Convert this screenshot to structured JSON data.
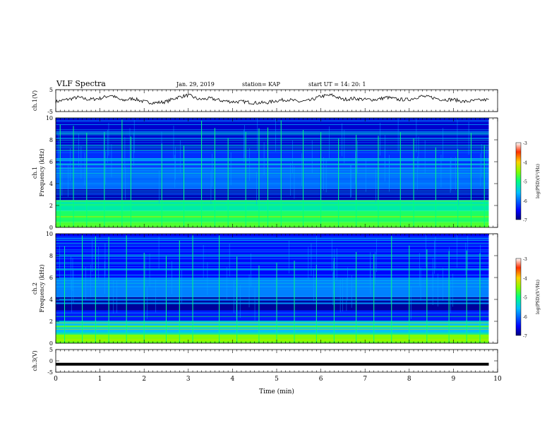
{
  "header": {
    "title": "VLF Spectra",
    "date": "Jan. 29, 2019",
    "station": "station= KAP",
    "start": "start  UT =   14: 20: 1"
  },
  "chart_data": [
    {
      "type": "line",
      "panel": "ch1-waveform",
      "ylabel": "ch.1(V)",
      "ylim": [
        -5,
        5
      ],
      "yticks": [
        "5",
        "-5"
      ],
      "xlim": [
        0,
        10
      ],
      "color": "#000000",
      "x": [
        0,
        0.25,
        0.5,
        0.75,
        1,
        1.25,
        1.5,
        1.75,
        2,
        2.25,
        2.5,
        2.75,
        3,
        3.25,
        3.5,
        3.75,
        4,
        4.25,
        4.5,
        4.75,
        5,
        5.25,
        5.5,
        5.75,
        6,
        6.25,
        6.5,
        6.75,
        7,
        7.25,
        7.5,
        7.75,
        8,
        8.25,
        8.5,
        8.75,
        9,
        9.25,
        9.5,
        9.8
      ],
      "y": [
        -0.5,
        0.5,
        1.5,
        0.5,
        1.0,
        2.5,
        0.0,
        1.0,
        -0.5,
        -1.0,
        -0.5,
        1.5,
        2.5,
        0.5,
        1.0,
        0.0,
        -0.5,
        -0.5,
        -1.0,
        -1.0,
        0.0,
        0.5,
        -0.5,
        0.0,
        2.0,
        2.5,
        0.5,
        1.0,
        0.5,
        0.5,
        1.5,
        0.5,
        0.5,
        2.0,
        1.5,
        0.5,
        0.5,
        -0.5,
        0.0,
        0.5
      ]
    },
    {
      "type": "heatmap",
      "panel": "ch1-spectrogram",
      "ylabel": "ch.1\nFrequency (kHz)",
      "ylim": [
        0,
        10
      ],
      "yticks": [
        "0",
        "2",
        "4",
        "6",
        "8",
        "10"
      ],
      "xlim": [
        0,
        10
      ],
      "colorbar": {
        "label": "log(PSD)(V²/Hz)",
        "range": [
          -7,
          -3
        ],
        "ticks": [
          "-3",
          "-4",
          "-5",
          "-6",
          "-7"
        ]
      },
      "bands": [
        {
          "f_low": 0,
          "f_high": 0.5,
          "level": -4.7
        },
        {
          "f_low": 0.5,
          "f_high": 1.5,
          "level": -4.9
        },
        {
          "f_low": 1.5,
          "f_high": 2.5,
          "level": -5.2
        },
        {
          "f_low": 2.5,
          "f_high": 3.5,
          "level": -6.8
        },
        {
          "f_low": 3.5,
          "f_high": 5.5,
          "level": -6.0
        },
        {
          "f_low": 5.5,
          "f_high": 7.0,
          "level": -6.3
        },
        {
          "f_low": 7.0,
          "f_high": 10.0,
          "level": -6.7
        }
      ],
      "bursts_min": [
        0.1,
        0.4,
        0.7,
        1.1,
        1.5,
        1.7,
        2.4,
        2.9,
        3.3,
        3.6,
        3.9,
        4.3,
        4.6,
        4.8,
        5.1,
        5.6,
        6.0,
        6.4,
        6.8,
        7.3,
        7.8,
        8.1,
        8.6,
        9.1,
        9.4,
        9.7
      ]
    },
    {
      "type": "heatmap",
      "panel": "ch2-spectrogram",
      "ylabel": "ch.2\nFrequency (kHz)",
      "ylim": [
        0,
        10
      ],
      "yticks": [
        "0",
        "2",
        "4",
        "6",
        "8",
        "10"
      ],
      "xlim": [
        0,
        10
      ],
      "colorbar": {
        "label": "log(PSD)(V²/Hz)",
        "range": [
          -7,
          -3
        ],
        "ticks": [
          "-3",
          "-4",
          "-5",
          "-6",
          "-7"
        ]
      },
      "bands": [
        {
          "f_low": 0,
          "f_high": 0.8,
          "level": -4.5
        },
        {
          "f_low": 0.8,
          "f_high": 2.0,
          "level": -5.6
        },
        {
          "f_low": 2.0,
          "f_high": 3.0,
          "level": -6.4
        },
        {
          "f_low": 3.0,
          "f_high": 4.2,
          "level": -6.9
        },
        {
          "f_low": 4.2,
          "f_high": 6.0,
          "level": -5.9
        },
        {
          "f_low": 6.0,
          "f_high": 10.0,
          "level": -6.5
        }
      ],
      "bursts_min": [
        0.2,
        0.6,
        0.9,
        1.2,
        1.6,
        2.0,
        2.5,
        2.8,
        3.1,
        3.7,
        4.1,
        4.6,
        5.0,
        5.4,
        5.9,
        6.3,
        6.8,
        7.2,
        7.6,
        8.0,
        8.4,
        8.9,
        9.3,
        9.6
      ]
    },
    {
      "type": "line",
      "panel": "ch3-waveform",
      "ylabel": "ch.3(V)",
      "ylim": [
        -5,
        5
      ],
      "yticks": [
        "5",
        "0",
        "-5"
      ],
      "xlim": [
        0,
        10
      ],
      "xlabel": "Time (min)",
      "xticks": [
        "0",
        "1",
        "2",
        "3",
        "4",
        "5",
        "6",
        "7",
        "8",
        "9",
        "10"
      ],
      "color": "#000000",
      "x": [
        0,
        9.8
      ],
      "y": [
        -1.5,
        -1.5
      ]
    }
  ]
}
